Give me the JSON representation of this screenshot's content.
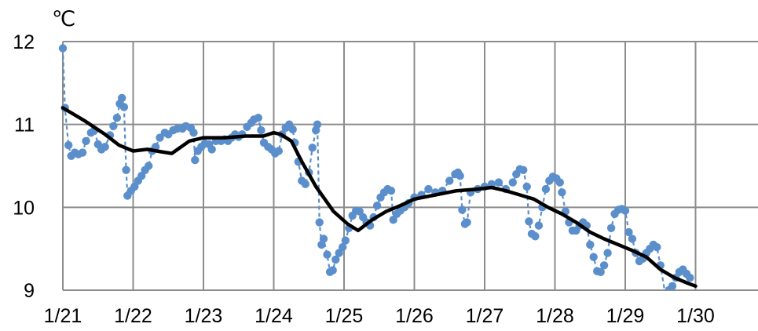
{
  "chart_data": {
    "type": "line",
    "unit_label": "℃",
    "xlabel": "",
    "ylabel": "",
    "x_tick_labels": [
      "1/21",
      "1/22",
      "1/23",
      "1/24",
      "1/25",
      "1/26",
      "1/27",
      "1/28",
      "1/29",
      "1/30"
    ],
    "y_tick_labels": [
      "9",
      "10",
      "11",
      "12"
    ],
    "xlim_days": [
      0,
      9.8
    ],
    "ylim": [
      9,
      12
    ],
    "grid": true,
    "legend": "none",
    "series": [
      {
        "style": "dashed-with-markers",
        "color": "#5b8fcc",
        "points": [
          [
            0.0,
            11.92
          ],
          [
            0.03,
            11.2
          ],
          [
            0.08,
            10.75
          ],
          [
            0.12,
            10.62
          ],
          [
            0.17,
            10.66
          ],
          [
            0.22,
            10.64
          ],
          [
            0.28,
            10.66
          ],
          [
            0.33,
            10.8
          ],
          [
            0.4,
            10.9
          ],
          [
            0.45,
            10.93
          ],
          [
            0.5,
            10.76
          ],
          [
            0.55,
            10.7
          ],
          [
            0.6,
            10.73
          ],
          [
            0.67,
            10.87
          ],
          [
            0.72,
            10.98
          ],
          [
            0.77,
            11.08
          ],
          [
            0.81,
            11.25
          ],
          [
            0.84,
            11.32
          ],
          [
            0.87,
            11.21
          ],
          [
            0.9,
            10.45
          ],
          [
            0.92,
            10.14
          ],
          [
            0.97,
            10.2
          ],
          [
            1.02,
            10.25
          ],
          [
            1.07,
            10.32
          ],
          [
            1.12,
            10.38
          ],
          [
            1.17,
            10.45
          ],
          [
            1.22,
            10.5
          ],
          [
            1.27,
            10.68
          ],
          [
            1.32,
            10.73
          ],
          [
            1.38,
            10.84
          ],
          [
            1.45,
            10.9
          ],
          [
            1.5,
            10.88
          ],
          [
            1.57,
            10.93
          ],
          [
            1.63,
            10.95
          ],
          [
            1.7,
            10.95
          ],
          [
            1.75,
            10.98
          ],
          [
            1.82,
            10.96
          ],
          [
            1.86,
            10.9
          ],
          [
            1.88,
            10.57
          ],
          [
            1.92,
            10.68
          ],
          [
            1.97,
            10.73
          ],
          [
            2.02,
            10.77
          ],
          [
            2.08,
            10.76
          ],
          [
            2.12,
            10.7
          ],
          [
            2.18,
            10.8
          ],
          [
            2.25,
            10.8
          ],
          [
            2.3,
            10.82
          ],
          [
            2.35,
            10.8
          ],
          [
            2.4,
            10.84
          ],
          [
            2.45,
            10.88
          ],
          [
            2.5,
            10.85
          ],
          [
            2.55,
            10.88
          ],
          [
            2.62,
            10.97
          ],
          [
            2.68,
            11.02
          ],
          [
            2.72,
            11.06
          ],
          [
            2.78,
            11.08
          ],
          [
            2.82,
            10.93
          ],
          [
            2.86,
            10.78
          ],
          [
            2.92,
            10.73
          ],
          [
            2.97,
            10.7
          ],
          [
            3.02,
            10.65
          ],
          [
            3.07,
            10.68
          ],
          [
            3.12,
            10.88
          ],
          [
            3.17,
            10.96
          ],
          [
            3.22,
            11.0
          ],
          [
            3.27,
            10.94
          ],
          [
            3.3,
            10.78
          ],
          [
            3.35,
            10.55
          ],
          [
            3.4,
            10.32
          ],
          [
            3.45,
            10.28
          ],
          [
            3.5,
            10.42
          ],
          [
            3.55,
            10.72
          ],
          [
            3.6,
            10.93
          ],
          [
            3.62,
            11.0
          ],
          [
            3.65,
            9.82
          ],
          [
            3.68,
            9.55
          ],
          [
            3.71,
            9.62
          ],
          [
            3.76,
            9.43
          ],
          [
            3.8,
            9.22
          ],
          [
            3.84,
            9.24
          ],
          [
            3.88,
            9.37
          ],
          [
            3.93,
            9.45
          ],
          [
            3.98,
            9.52
          ],
          [
            4.02,
            9.6
          ],
          [
            4.07,
            9.75
          ],
          [
            4.12,
            9.9
          ],
          [
            4.17,
            9.96
          ],
          [
            4.22,
            9.95
          ],
          [
            4.27,
            9.88
          ],
          [
            4.32,
            9.82
          ],
          [
            4.37,
            9.78
          ],
          [
            4.42,
            9.88
          ],
          [
            4.47,
            10.02
          ],
          [
            4.52,
            10.12
          ],
          [
            4.57,
            10.18
          ],
          [
            4.62,
            10.22
          ],
          [
            4.67,
            10.2
          ],
          [
            4.7,
            9.85
          ],
          [
            4.75,
            9.92
          ],
          [
            4.8,
            9.96
          ],
          [
            4.86,
            10.0
          ],
          [
            4.92,
            10.05
          ],
          [
            5.0,
            10.12
          ],
          [
            5.1,
            10.15
          ],
          [
            5.2,
            10.22
          ],
          [
            5.3,
            10.18
          ],
          [
            5.4,
            10.2
          ],
          [
            5.5,
            10.32
          ],
          [
            5.58,
            10.4
          ],
          [
            5.62,
            10.42
          ],
          [
            5.65,
            10.38
          ],
          [
            5.68,
            9.97
          ],
          [
            5.72,
            9.8
          ],
          [
            5.75,
            9.82
          ],
          [
            5.8,
            10.18
          ],
          [
            5.9,
            10.22
          ],
          [
            6.0,
            10.25
          ],
          [
            6.1,
            10.28
          ],
          [
            6.2,
            10.3
          ],
          [
            6.3,
            10.22
          ],
          [
            6.4,
            10.3
          ],
          [
            6.45,
            10.4
          ],
          [
            6.5,
            10.46
          ],
          [
            6.55,
            10.45
          ],
          [
            6.6,
            10.25
          ],
          [
            6.63,
            9.83
          ],
          [
            6.67,
            9.68
          ],
          [
            6.72,
            9.65
          ],
          [
            6.77,
            9.78
          ],
          [
            6.82,
            10.0
          ],
          [
            6.87,
            10.22
          ],
          [
            6.92,
            10.32
          ],
          [
            6.97,
            10.37
          ],
          [
            7.02,
            10.35
          ],
          [
            7.07,
            10.3
          ],
          [
            7.1,
            10.18
          ],
          [
            7.15,
            9.95
          ],
          [
            7.2,
            9.82
          ],
          [
            7.25,
            9.72
          ],
          [
            7.3,
            9.72
          ],
          [
            7.35,
            9.78
          ],
          [
            7.4,
            9.82
          ],
          [
            7.45,
            9.78
          ],
          [
            7.5,
            9.55
          ],
          [
            7.55,
            9.4
          ],
          [
            7.6,
            9.23
          ],
          [
            7.65,
            9.22
          ],
          [
            7.7,
            9.3
          ],
          [
            7.75,
            9.45
          ],
          [
            7.8,
            9.75
          ],
          [
            7.85,
            9.92
          ],
          [
            7.9,
            9.97
          ],
          [
            7.95,
            9.98
          ],
          [
            8.0,
            9.96
          ],
          [
            8.05,
            9.7
          ],
          [
            8.1,
            9.62
          ],
          [
            8.15,
            9.45
          ],
          [
            8.2,
            9.35
          ],
          [
            8.25,
            9.38
          ],
          [
            8.3,
            9.45
          ],
          [
            8.35,
            9.5
          ],
          [
            8.4,
            9.55
          ],
          [
            8.45,
            9.52
          ],
          [
            8.5,
            9.3
          ],
          [
            8.57,
            8.95
          ],
          [
            8.62,
            9.0
          ],
          [
            8.67,
            9.05
          ],
          [
            8.72,
            9.15
          ],
          [
            8.77,
            9.22
          ],
          [
            8.82,
            9.25
          ],
          [
            8.87,
            9.2
          ],
          [
            8.92,
            9.15
          ]
        ]
      },
      {
        "style": "solid",
        "color": "#000000",
        "points": [
          [
            0.0,
            11.2
          ],
          [
            0.3,
            11.05
          ],
          [
            0.6,
            10.88
          ],
          [
            0.8,
            10.75
          ],
          [
            1.0,
            10.68
          ],
          [
            1.2,
            10.7
          ],
          [
            1.4,
            10.67
          ],
          [
            1.55,
            10.65
          ],
          [
            1.8,
            10.8
          ],
          [
            2.0,
            10.84
          ],
          [
            2.3,
            10.84
          ],
          [
            2.6,
            10.86
          ],
          [
            2.85,
            10.86
          ],
          [
            3.0,
            10.9
          ],
          [
            3.1,
            10.88
          ],
          [
            3.25,
            10.8
          ],
          [
            3.4,
            10.55
          ],
          [
            3.6,
            10.25
          ],
          [
            3.85,
            9.95
          ],
          [
            4.05,
            9.8
          ],
          [
            4.2,
            9.72
          ],
          [
            4.4,
            9.85
          ],
          [
            4.6,
            9.95
          ],
          [
            4.8,
            10.02
          ],
          [
            5.0,
            10.1
          ],
          [
            5.3,
            10.15
          ],
          [
            5.6,
            10.2
          ],
          [
            5.9,
            10.22
          ],
          [
            6.1,
            10.24
          ],
          [
            6.3,
            10.2
          ],
          [
            6.5,
            10.15
          ],
          [
            6.7,
            10.1
          ],
          [
            6.9,
            10.0
          ],
          [
            7.1,
            9.92
          ],
          [
            7.3,
            9.82
          ],
          [
            7.5,
            9.7
          ],
          [
            7.7,
            9.62
          ],
          [
            7.9,
            9.55
          ],
          [
            8.1,
            9.48
          ],
          [
            8.3,
            9.4
          ],
          [
            8.5,
            9.25
          ],
          [
            8.7,
            9.15
          ],
          [
            8.9,
            9.08
          ],
          [
            9.0,
            9.05
          ]
        ]
      }
    ]
  }
}
